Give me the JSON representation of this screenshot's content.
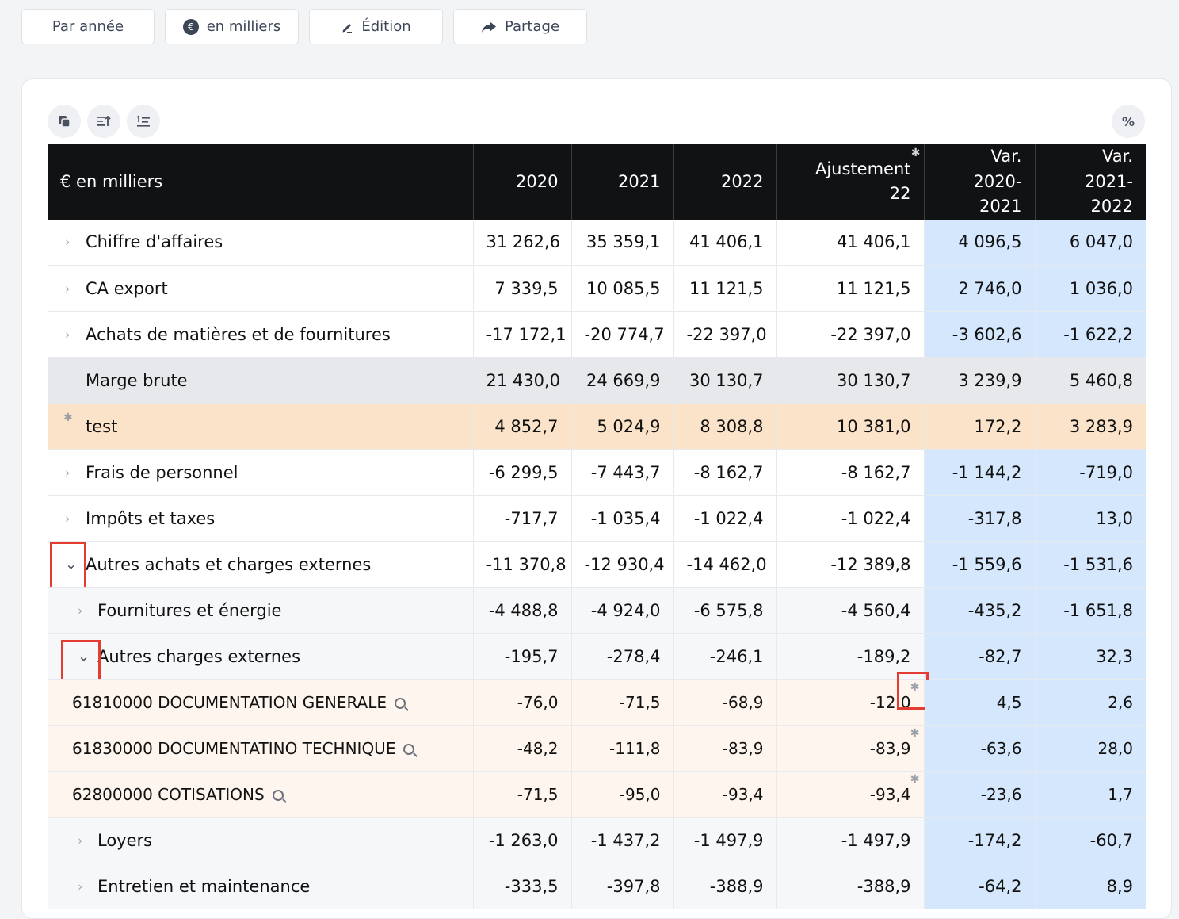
{
  "toolbar": {
    "by_year": "Par année",
    "thousands": "en milliers",
    "currency_symbol": "€",
    "edit": "Édition",
    "share": "Partage"
  },
  "table_tools": {
    "percent": "%"
  },
  "table": {
    "headers": [
      "€ en milliers",
      "2020",
      "2021",
      "2022",
      "Ajustement 22",
      "Var.\n2020-2021",
      "Var.\n2021-2022"
    ],
    "rows": [
      {
        "label": "Chiffre d'affaires",
        "values": [
          "31 262,6",
          "35 359,1",
          "41 406,1",
          "41 406,1",
          "4 096,5",
          "6 047,0"
        ]
      },
      {
        "label": "CA export",
        "values": [
          "7 339,5",
          "10 085,5",
          "11 121,5",
          "11 121,5",
          "2 746,0",
          "1 036,0"
        ]
      },
      {
        "label": "Achats de matières et de fournitures",
        "values": [
          "-17 172,1",
          "-20 774,7",
          "-22 397,0",
          "-22 397,0",
          "-3 602,6",
          "-1 622,2"
        ]
      },
      {
        "label": "Marge brute",
        "values": [
          "21 430,0",
          "24 669,9",
          "30 130,7",
          "30 130,7",
          "3 239,9",
          "5 460,8"
        ]
      },
      {
        "label": "test",
        "values": [
          "4 852,7",
          "5 024,9",
          "8 308,8",
          "10 381,0",
          "172,2",
          "3 283,9"
        ]
      },
      {
        "label": "Frais de personnel",
        "values": [
          "-6 299,5",
          "-7 443,7",
          "-8 162,7",
          "-8 162,7",
          "-1 144,2",
          "-719,0"
        ]
      },
      {
        "label": "Impôts et taxes",
        "values": [
          "-717,7",
          "-1 035,4",
          "-1 022,4",
          "-1 022,4",
          "-317,8",
          "13,0"
        ]
      },
      {
        "label": "Autres achats et charges externes",
        "values": [
          "-11 370,8",
          "-12 930,4",
          "-14 462,0",
          "-12 389,8",
          "-1 559,6",
          "-1 531,6"
        ]
      },
      {
        "label": "Fournitures et énergie",
        "values": [
          "-4 488,8",
          "-4 924,0",
          "-6 575,8",
          "-4 560,4",
          "-435,2",
          "-1 651,8"
        ]
      },
      {
        "label": "Autres charges externes",
        "values": [
          "-195,7",
          "-278,4",
          "-246,1",
          "-189,2",
          "-82,7",
          "32,3"
        ]
      },
      {
        "label": "61810000 DOCUMENTATION GENERALE",
        "values": [
          "-76,0",
          "-71,5",
          "-68,9",
          "-12,0",
          "4,5",
          "2,6"
        ]
      },
      {
        "label": "61830000 DOCUMENTATINO TECHNIQUE",
        "values": [
          "-48,2",
          "-111,8",
          "-83,9",
          "-83,9",
          "-63,6",
          "28,0"
        ]
      },
      {
        "label": "62800000 COTISATIONS",
        "values": [
          "-71,5",
          "-95,0",
          "-93,4",
          "-93,4",
          "-23,6",
          "1,7"
        ]
      },
      {
        "label": "Loyers",
        "values": [
          "-1 263,0",
          "-1 437,2",
          "-1 497,9",
          "-1 497,9",
          "-174,2",
          "-60,7"
        ]
      },
      {
        "label": "Entretien et maintenance",
        "values": [
          "-333,5",
          "-397,8",
          "-388,9",
          "-388,9",
          "-64,2",
          "8,9"
        ]
      }
    ]
  }
}
